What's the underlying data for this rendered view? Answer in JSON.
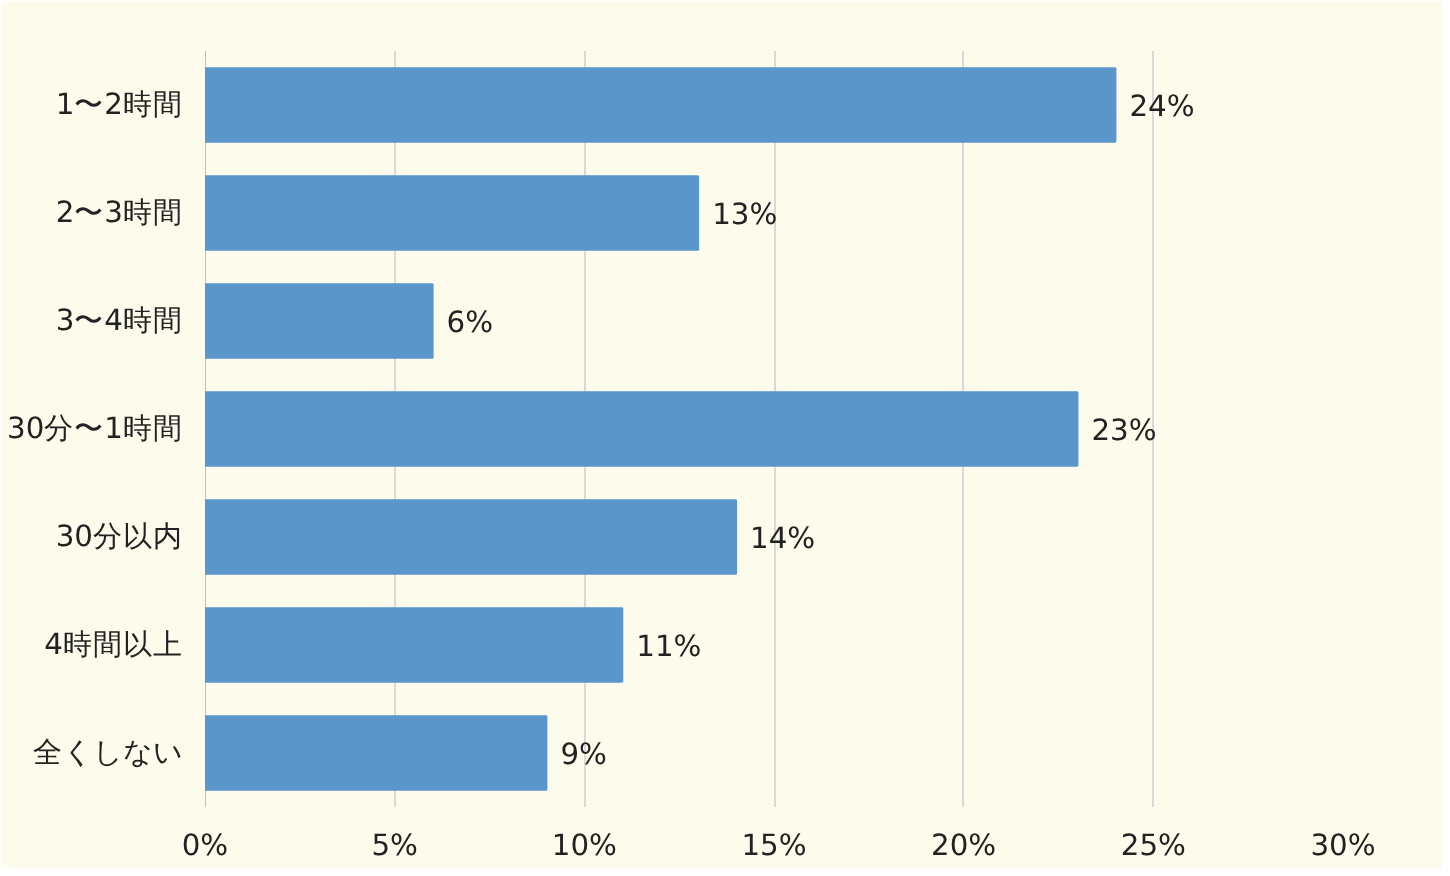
{
  "chart_data": {
    "type": "bar",
    "orientation": "horizontal",
    "categories": [
      "1〜2時間",
      "2〜3時間",
      "3〜4時間",
      "30分〜1時間",
      "30分以内",
      "4時間以上",
      "全くしない"
    ],
    "values": [
      24,
      13,
      6,
      23,
      14,
      11,
      9
    ],
    "value_labels": [
      "24%",
      "13%",
      "6%",
      "23%",
      "14%",
      "11%",
      "9%"
    ],
    "color": "#5b96cb",
    "xlim": [
      0,
      30
    ],
    "xticks": [
      {
        "value": 0,
        "label": "0%"
      },
      {
        "value": 5,
        "label": "5%"
      },
      {
        "value": 10,
        "label": "10%"
      },
      {
        "value": 15,
        "label": "15%"
      },
      {
        "value": 20,
        "label": "20%"
      },
      {
        "value": 25,
        "label": "25%"
      },
      {
        "value": 30,
        "label": "30%"
      }
    ],
    "grid": "x"
  }
}
